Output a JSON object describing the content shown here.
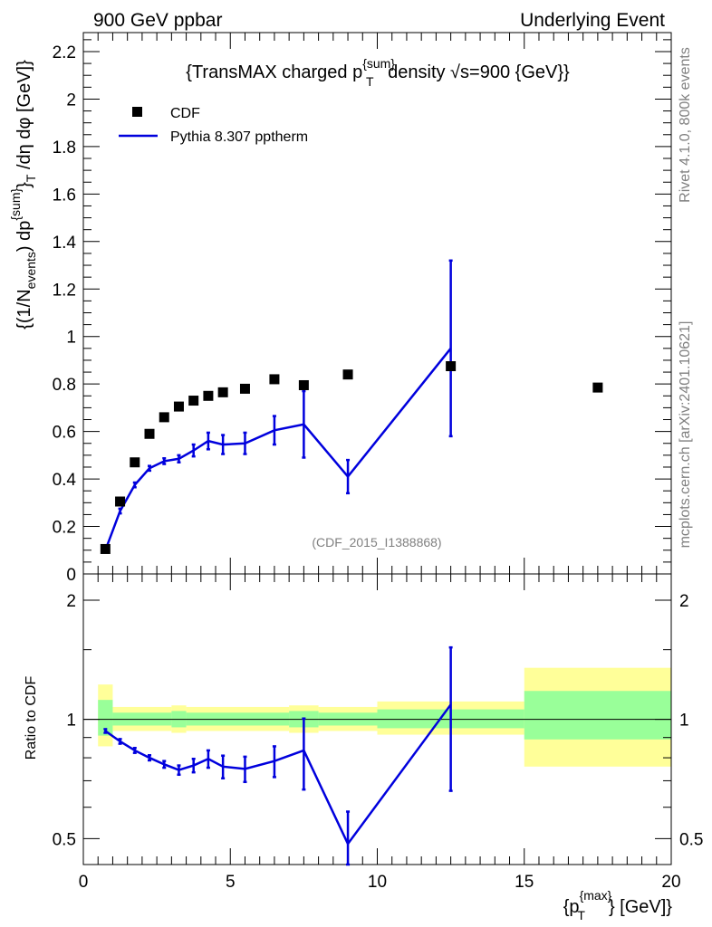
{
  "header": {
    "left": "900 GeV ppbar",
    "right": "Underlying Event"
  },
  "side": {
    "rivet": "Rivet 4.1.0,  800k events",
    "mcplots": "mcplots.cern.ch [arXiv:2401.10621]"
  },
  "chart_data": [
    {
      "type": "scatter",
      "panel": "main",
      "title": "{TransMAX charged p^{sum}_T density √s=900 {GeV}}",
      "title_parts": {
        "pre": "{TransMAX charged p",
        "sup": "{sum}",
        "sub": "T",
        "post": " density √s=900 {GeV}}"
      },
      "ylabel": "{(1/N_events) dp^{sum}_T /dη dφ [GeV]}",
      "ylabel_parts": {
        "a": "{(1/N",
        "a_sub": "events",
        "b": ") dp",
        "b_sup": "{sum}",
        "c": "}",
        "c_sub": "T",
        "d": " /dη  dφ [GeV]}"
      },
      "xlim": [
        0,
        20
      ],
      "ylim": [
        0,
        2.28
      ],
      "yticks": [
        0,
        0.2,
        0.4,
        0.6,
        0.8,
        1,
        1.2,
        1.4,
        1.6,
        1.8,
        2,
        2.2
      ],
      "ytick_labels": [
        "0",
        "0.2",
        "0.4",
        "0.6",
        "0.8",
        "1",
        "1.2",
        "1.4",
        "1.6",
        "1.8",
        "2",
        "2.2"
      ],
      "annotation": "(CDF_2015_I1388868)",
      "legend": [
        {
          "label": "CDF",
          "marker": "square",
          "color": "#000000"
        },
        {
          "label": "Pythia 8.307 pptherm",
          "marker": "line",
          "color": "#0000dd"
        }
      ],
      "series": [
        {
          "name": "CDF",
          "color": "#000000",
          "x": [
            0.75,
            1.25,
            1.75,
            2.25,
            2.75,
            3.25,
            3.75,
            4.25,
            4.75,
            5.5,
            6.5,
            7.5,
            9.0,
            12.5,
            17.5
          ],
          "y": [
            0.105,
            0.305,
            0.47,
            0.59,
            0.66,
            0.705,
            0.73,
            0.75,
            0.765,
            0.78,
            0.82,
            0.795,
            0.84,
            0.875,
            0.785
          ]
        },
        {
          "name": "Pythia 8.307 pptherm",
          "color": "#0000dd",
          "x": [
            0.75,
            1.25,
            1.75,
            2.25,
            2.75,
            3.25,
            3.75,
            4.25,
            4.75,
            5.5,
            6.5,
            7.5,
            9.0,
            12.5
          ],
          "y": [
            0.1,
            0.265,
            0.375,
            0.445,
            0.475,
            0.485,
            0.52,
            0.56,
            0.545,
            0.55,
            0.605,
            0.63,
            0.41,
            0.95
          ],
          "err": [
            0.005,
            0.01,
            0.01,
            0.01,
            0.012,
            0.015,
            0.025,
            0.035,
            0.04,
            0.045,
            0.06,
            0.14,
            0.07,
            0.37
          ]
        }
      ]
    },
    {
      "type": "line",
      "panel": "ratio",
      "ylabel": "Ratio to CDF",
      "xlabel": "{p^{max}_T} [GeV]}",
      "xlabel_parts": {
        "pre": "{p",
        "sup": "{max}",
        "sub": "T",
        "post": "} [GeV]}"
      },
      "xlim": [
        0,
        20
      ],
      "xticks": [
        0,
        5,
        10,
        15,
        20
      ],
      "xtick_labels": [
        "0",
        "5",
        "10",
        "15",
        "20"
      ],
      "ylim": [
        0.43,
        2.33
      ],
      "yticks": [
        0.5,
        1,
        2
      ],
      "ytick_labels": [
        "0.5",
        "1",
        "2"
      ],
      "bands": {
        "yellow": [
          {
            "x0": 0.5,
            "x1": 1.0,
            "lo": 0.855,
            "hi": 1.225
          },
          {
            "x0": 1.0,
            "x1": 3.0,
            "lo": 0.935,
            "hi": 1.075
          },
          {
            "x0": 3.0,
            "x1": 3.5,
            "lo": 0.925,
            "hi": 1.085
          },
          {
            "x0": 3.5,
            "x1": 7.0,
            "lo": 0.935,
            "hi": 1.075
          },
          {
            "x0": 7.0,
            "x1": 8.0,
            "lo": 0.925,
            "hi": 1.085
          },
          {
            "x0": 8.0,
            "x1": 10.0,
            "lo": 0.935,
            "hi": 1.075
          },
          {
            "x0": 10.0,
            "x1": 15.0,
            "lo": 0.915,
            "hi": 1.11
          },
          {
            "x0": 15.0,
            "x1": 20.0,
            "lo": 0.76,
            "hi": 1.35
          }
        ],
        "green": [
          {
            "x0": 0.5,
            "x1": 1.0,
            "lo": 0.91,
            "hi": 1.12
          },
          {
            "x0": 1.0,
            "x1": 3.0,
            "lo": 0.965,
            "hi": 1.04
          },
          {
            "x0": 3.0,
            "x1": 3.5,
            "lo": 0.955,
            "hi": 1.05
          },
          {
            "x0": 3.5,
            "x1": 7.0,
            "lo": 0.965,
            "hi": 1.04
          },
          {
            "x0": 7.0,
            "x1": 8.0,
            "lo": 0.955,
            "hi": 1.05
          },
          {
            "x0": 8.0,
            "x1": 10.0,
            "lo": 0.965,
            "hi": 1.04
          },
          {
            "x0": 10.0,
            "x1": 15.0,
            "lo": 0.95,
            "hi": 1.06
          },
          {
            "x0": 15.0,
            "x1": 20.0,
            "lo": 0.89,
            "hi": 1.18
          }
        ]
      },
      "series": [
        {
          "name": "Pythia 8.307 pptherm / CDF",
          "color": "#0000dd",
          "x": [
            0.75,
            1.25,
            1.75,
            2.25,
            2.75,
            3.25,
            3.75,
            4.25,
            4.75,
            5.5,
            6.5,
            7.5,
            9.0,
            12.5
          ],
          "y": [
            0.935,
            0.88,
            0.835,
            0.8,
            0.77,
            0.745,
            0.765,
            0.795,
            0.76,
            0.75,
            0.785,
            0.835,
            0.485,
            1.09
          ],
          "err": [
            0.01,
            0.012,
            0.012,
            0.012,
            0.015,
            0.02,
            0.03,
            0.04,
            0.05,
            0.055,
            0.07,
            0.17,
            0.1,
            0.43
          ]
        }
      ]
    }
  ]
}
